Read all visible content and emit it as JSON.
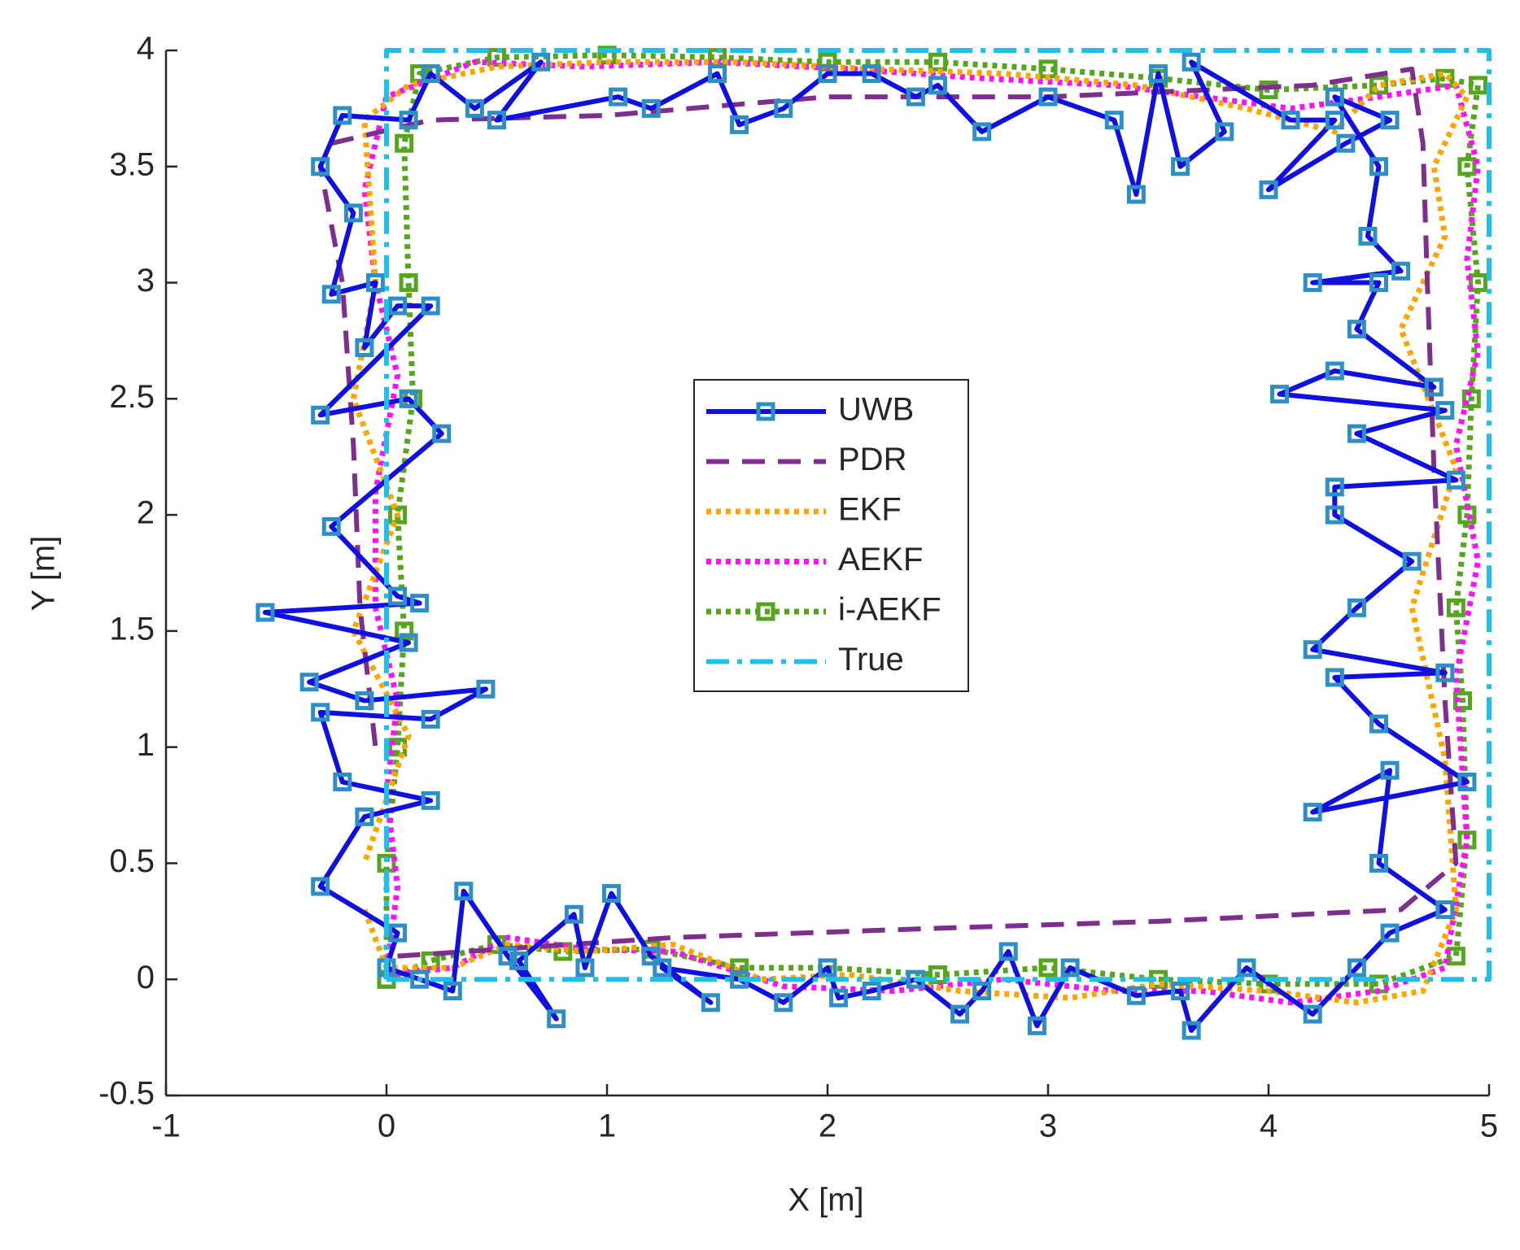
{
  "chart_data": {
    "type": "line",
    "xlabel": "X [m]",
    "ylabel": "Y [m]",
    "xlim": [
      -1,
      5
    ],
    "ylim": [
      -0.5,
      4
    ],
    "xticks": [
      -1,
      0,
      1,
      2,
      3,
      4,
      5
    ],
    "yticks": [
      -0.5,
      0,
      0.5,
      1,
      1.5,
      2,
      2.5,
      3,
      3.5,
      4
    ],
    "legend": "center",
    "series": [
      {
        "name": "UWB",
        "color": "#1010e0",
        "style": "solid",
        "marker": "#2e8fc6",
        "x": [
          0,
          0.15,
          0.3,
          0.35,
          0.55,
          0.77,
          0.6,
          0.85,
          0.9,
          1.02,
          1.2,
          1.47,
          1.25,
          1.6,
          1.8,
          2.0,
          2.05,
          2.2,
          2.4,
          2.6,
          2.7,
          2.82,
          2.95,
          3.1,
          3.4,
          3.6,
          3.65,
          3.9,
          4.2,
          4.4,
          4.55,
          4.8,
          4.5,
          4.55,
          4.2,
          4.9,
          4.5,
          4.3,
          4.8,
          4.2,
          4.4,
          4.65,
          4.3,
          4.3,
          4.85,
          4.4,
          4.8,
          4.05,
          4.3,
          4.75,
          4.4,
          4.5,
          4.2,
          4.6,
          4.45,
          4.5,
          4.3,
          4.55,
          4.35,
          4.0,
          4.3,
          4.1,
          3.65,
          3.8,
          3.6,
          3.5,
          3.4,
          3.3,
          3.0,
          2.7,
          2.5,
          2.4,
          2.2,
          2.0,
          1.8,
          1.6,
          1.5,
          1.2,
          1.05,
          0.5,
          0.7,
          0.4,
          0.2,
          0.1,
          -0.2,
          -0.3,
          -0.15,
          -0.25,
          -0.05,
          -0.1,
          0.05,
          0.2,
          -0.3,
          0.1,
          0.25,
          -0.25,
          0.05,
          0.15,
          -0.55,
          0.1,
          -0.35,
          -0.1,
          0.45,
          0.2,
          -0.3,
          -0.2,
          0.2,
          -0.1,
          -0.3,
          0.05,
          0
        ],
        "values": [
          0.05,
          0.0,
          -0.05,
          0.38,
          0.1,
          -0.17,
          0.08,
          0.28,
          0.05,
          0.37,
          0.1,
          -0.1,
          0.05,
          0.0,
          -0.1,
          0.05,
          -0.08,
          -0.05,
          0.0,
          -0.15,
          -0.05,
          0.12,
          -0.2,
          0.05,
          -0.07,
          -0.05,
          -0.22,
          0.05,
          -0.15,
          0.05,
          0.2,
          0.3,
          0.5,
          0.9,
          0.72,
          0.85,
          1.1,
          1.3,
          1.32,
          1.42,
          1.6,
          1.8,
          2.0,
          2.12,
          2.15,
          2.35,
          2.45,
          2.52,
          2.62,
          2.55,
          2.8,
          3.0,
          3.0,
          3.05,
          3.2,
          3.5,
          3.8,
          3.7,
          3.6,
          3.4,
          3.7,
          3.7,
          3.95,
          3.65,
          3.5,
          3.9,
          3.38,
          3.7,
          3.8,
          3.65,
          3.85,
          3.8,
          3.9,
          3.9,
          3.75,
          3.68,
          3.9,
          3.75,
          3.8,
          3.7,
          3.95,
          3.75,
          3.9,
          3.7,
          3.72,
          3.5,
          3.3,
          2.95,
          3.0,
          2.72,
          2.9,
          2.9,
          2.43,
          2.5,
          2.35,
          1.95,
          1.65,
          1.62,
          1.58,
          1.45,
          1.28,
          1.2,
          1.25,
          1.12,
          1.15,
          0.85,
          0.77,
          0.7,
          0.4,
          0.2,
          0.05
        ]
      },
      {
        "name": "PDR",
        "color": "#7e2f8e",
        "style": "dash",
        "x": [
          0.05,
          1.3,
          2.5,
          3.5,
          4.6,
          4.85,
          4.8,
          4.75,
          4.72,
          4.7,
          4.65,
          4.2,
          3.0,
          2.0,
          1.0,
          0.2,
          -0.25,
          -0.3,
          -0.2,
          -0.15,
          -0.12,
          -0.05
        ],
        "values": [
          0.1,
          0.18,
          0.22,
          0.25,
          0.3,
          0.5,
          1.2,
          2.2,
          3.0,
          3.6,
          3.92,
          3.85,
          3.8,
          3.8,
          3.72,
          3.7,
          3.6,
          3.5,
          3.0,
          2.3,
          1.6,
          1.0
        ]
      },
      {
        "name": "EKF",
        "color": "#ffa500",
        "style": "dot",
        "x": [
          -0.1,
          0.0,
          0.3,
          0.55,
          0.9,
          1.3,
          1.7,
          2.1,
          2.6,
          3.1,
          3.5,
          4.0,
          4.4,
          4.7,
          4.85,
          4.8,
          4.65,
          4.85,
          4.6,
          4.8,
          4.75,
          4.9,
          4.8,
          4.5,
          4.3,
          3.9,
          3.4,
          2.8,
          2.2,
          1.6,
          1.0,
          0.5,
          0.1,
          -0.1,
          -0.05,
          -0.15,
          0.05,
          -0.15,
          0.1,
          -0.1
        ],
        "values": [
          0.3,
          0.05,
          0.05,
          0.15,
          0.12,
          0.15,
          0.0,
          0.02,
          -0.05,
          -0.08,
          -0.02,
          -0.05,
          -0.1,
          -0.05,
          0.3,
          0.95,
          1.6,
          2.2,
          2.8,
          3.2,
          3.5,
          3.8,
          3.9,
          3.85,
          3.65,
          3.75,
          3.85,
          3.9,
          3.92,
          3.95,
          3.95,
          3.93,
          3.85,
          3.7,
          3.0,
          2.5,
          2.0,
          1.5,
          1.05,
          0.5
        ]
      },
      {
        "name": "AEKF",
        "color": "#ff10ff",
        "style": "dot",
        "x": [
          0.0,
          0.3,
          0.55,
          0.9,
          1.3,
          1.8,
          2.3,
          2.8,
          3.3,
          3.7,
          4.1,
          4.5,
          4.8,
          4.9,
          4.85,
          4.95,
          4.85,
          4.95,
          4.9,
          4.95,
          4.85,
          4.5,
          4.1,
          3.7,
          3.3,
          2.7,
          2.1,
          1.5,
          0.9,
          0.4,
          0.0,
          -0.1,
          -0.05,
          0.05,
          -0.05,
          -0.05,
          0.05,
          0.0,
          0.05,
          0.0
        ],
        "values": [
          0.02,
          0.05,
          0.18,
          0.13,
          0.12,
          -0.03,
          -0.05,
          0.0,
          -0.05,
          -0.05,
          -0.1,
          -0.05,
          0.05,
          0.6,
          1.3,
          1.8,
          2.3,
          2.7,
          3.1,
          3.5,
          3.85,
          3.8,
          3.75,
          3.8,
          3.85,
          3.88,
          3.92,
          3.95,
          3.93,
          3.95,
          3.8,
          3.4,
          3.0,
          2.6,
          2.1,
          1.6,
          1.2,
          0.8,
          0.4,
          0.02
        ]
      },
      {
        "name": "i-AEKF",
        "color": "#55a51e",
        "style": "dot",
        "marker": "#55a51e",
        "x": [
          0,
          0.2,
          0.5,
          0.8,
          1.2,
          1.6,
          2.0,
          2.5,
          3.0,
          3.5,
          4.0,
          4.5,
          4.85,
          4.9,
          4.88,
          4.85,
          4.9,
          4.92,
          4.95,
          4.9,
          4.95,
          4.8,
          4.5,
          4.0,
          3.5,
          3.0,
          2.5,
          2.0,
          1.5,
          1.0,
          0.5,
          0.15,
          0.08,
          0.1,
          0.12,
          0.05,
          0.08,
          0.05,
          0.0,
          0.0
        ],
        "values": [
          0.0,
          0.08,
          0.15,
          0.12,
          0.13,
          0.05,
          0.05,
          0.02,
          0.05,
          0.0,
          -0.02,
          -0.02,
          0.1,
          0.6,
          1.2,
          1.6,
          2.0,
          2.5,
          3.0,
          3.5,
          3.85,
          3.88,
          3.85,
          3.83,
          3.88,
          3.92,
          3.95,
          3.95,
          3.97,
          3.98,
          3.97,
          3.9,
          3.6,
          3.0,
          2.5,
          2.0,
          1.5,
          1.0,
          0.5,
          0.0
        ]
      },
      {
        "name": "True",
        "color": "#1ec0ea",
        "style": "dashdot",
        "x": [
          0,
          5,
          5,
          0,
          0
        ],
        "values": [
          0,
          0,
          4,
          4,
          0
        ]
      }
    ]
  }
}
